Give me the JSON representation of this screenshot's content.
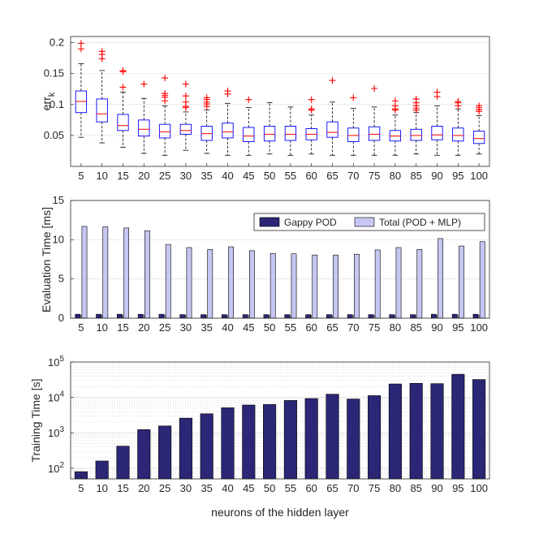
{
  "chart_data": [
    {
      "type": "box",
      "title": "",
      "xlabel": "",
      "ylabel": "err",
      "ylabel_subscript": "k",
      "categories": [
        "5",
        "10",
        "15",
        "20",
        "25",
        "30",
        "35",
        "40",
        "45",
        "50",
        "55",
        "60",
        "65",
        "70",
        "75",
        "80",
        "85",
        "90",
        "95",
        "100"
      ],
      "ylim": [
        0,
        0.21
      ],
      "yticks": [
        0.05,
        0.1,
        0.15,
        0.2
      ],
      "ytick_labels": [
        "0.05",
        "0.1",
        "0.15",
        "0.2"
      ],
      "grid": true,
      "box_color": "#0000ff",
      "median_color": "#ff0000",
      "outlier_color": "#ff0000",
      "whisker_color": "#000000",
      "boxes": [
        {
          "q1": 0.087,
          "median": 0.105,
          "q3": 0.122,
          "lo": 0.047,
          "hi": 0.166,
          "outliers": [
            0.19,
            0.199
          ]
        },
        {
          "q1": 0.072,
          "median": 0.085,
          "q3": 0.109,
          "lo": 0.038,
          "hi": 0.155,
          "outliers": [
            0.174,
            0.181,
            0.186
          ]
        },
        {
          "q1": 0.058,
          "median": 0.066,
          "q3": 0.084,
          "lo": 0.031,
          "hi": 0.12,
          "outliers": [
            0.128,
            0.153,
            0.155
          ]
        },
        {
          "q1": 0.049,
          "median": 0.06,
          "q3": 0.075,
          "lo": 0.021,
          "hi": 0.11,
          "outliers": [
            0.133
          ]
        },
        {
          "q1": 0.046,
          "median": 0.056,
          "q3": 0.068,
          "lo": 0.018,
          "hi": 0.098,
          "outliers": [
            0.106,
            0.112,
            0.115,
            0.118,
            0.143
          ]
        },
        {
          "q1": 0.052,
          "median": 0.058,
          "q3": 0.068,
          "lo": 0.026,
          "hi": 0.088,
          "outliers": [
            0.095,
            0.097,
            0.104,
            0.114,
            0.133
          ]
        },
        {
          "q1": 0.042,
          "median": 0.053,
          "q3": 0.065,
          "lo": 0.021,
          "hi": 0.091,
          "outliers": [
            0.097,
            0.101,
            0.104,
            0.108,
            0.111
          ]
        },
        {
          "q1": 0.046,
          "median": 0.056,
          "q3": 0.07,
          "lo": 0.018,
          "hi": 0.102,
          "outliers": [
            0.117,
            0.122
          ]
        },
        {
          "q1": 0.04,
          "median": 0.049,
          "q3": 0.063,
          "lo": 0.018,
          "hi": 0.095,
          "outliers": [
            0.108
          ]
        },
        {
          "q1": 0.041,
          "median": 0.052,
          "q3": 0.065,
          "lo": 0.02,
          "hi": 0.103,
          "outliers": []
        },
        {
          "q1": 0.042,
          "median": 0.052,
          "q3": 0.065,
          "lo": 0.018,
          "hi": 0.096,
          "outliers": []
        },
        {
          "q1": 0.043,
          "median": 0.052,
          "q3": 0.061,
          "lo": 0.02,
          "hi": 0.083,
          "outliers": [
            0.091,
            0.093,
            0.108
          ]
        },
        {
          "q1": 0.047,
          "median": 0.055,
          "q3": 0.072,
          "lo": 0.018,
          "hi": 0.104,
          "outliers": [
            0.139
          ]
        },
        {
          "q1": 0.04,
          "median": 0.05,
          "q3": 0.062,
          "lo": 0.018,
          "hi": 0.094,
          "outliers": [
            0.111
          ]
        },
        {
          "q1": 0.042,
          "median": 0.052,
          "q3": 0.064,
          "lo": 0.018,
          "hi": 0.096,
          "outliers": [
            0.126
          ]
        },
        {
          "q1": 0.041,
          "median": 0.049,
          "q3": 0.058,
          "lo": 0.018,
          "hi": 0.083,
          "outliers": [
            0.091,
            0.093,
            0.098,
            0.106
          ]
        },
        {
          "q1": 0.042,
          "median": 0.05,
          "q3": 0.06,
          "lo": 0.02,
          "hi": 0.087,
          "outliers": [
            0.091,
            0.094,
            0.098,
            0.103,
            0.109
          ]
        },
        {
          "q1": 0.043,
          "median": 0.051,
          "q3": 0.065,
          "lo": 0.018,
          "hi": 0.098,
          "outliers": [
            0.113,
            0.12
          ]
        },
        {
          "q1": 0.041,
          "median": 0.05,
          "q3": 0.062,
          "lo": 0.018,
          "hi": 0.093,
          "outliers": [
            0.098,
            0.103,
            0.105
          ]
        },
        {
          "q1": 0.037,
          "median": 0.045,
          "q3": 0.057,
          "lo": 0.02,
          "hi": 0.082,
          "outliers": [
            0.089,
            0.092,
            0.095,
            0.098
          ]
        }
      ]
    },
    {
      "type": "bar",
      "title": "",
      "xlabel": "",
      "ylabel": "Evaluation Time [ms]",
      "categories": [
        "5",
        "10",
        "15",
        "20",
        "25",
        "30",
        "35",
        "40",
        "45",
        "50",
        "55",
        "60",
        "65",
        "70",
        "75",
        "80",
        "85",
        "90",
        "95",
        "100"
      ],
      "ylim": [
        0,
        15
      ],
      "yticks": [
        0,
        5,
        10,
        15
      ],
      "ytick_labels": [
        "0",
        "5",
        "10",
        "15"
      ],
      "grid": true,
      "legend_position": "top-right",
      "series": [
        {
          "name": "Gappy POD",
          "color": "#2b2776",
          "values": [
            0.5,
            0.5,
            0.5,
            0.5,
            0.5,
            0.45,
            0.45,
            0.45,
            0.45,
            0.45,
            0.45,
            0.45,
            0.45,
            0.45,
            0.45,
            0.45,
            0.45,
            0.5,
            0.5,
            0.5
          ]
        },
        {
          "name": "Total (POD + MLP)",
          "color": "#c5c6f2",
          "values": [
            11.7,
            11.65,
            11.5,
            11.15,
            9.4,
            9.0,
            8.75,
            9.1,
            8.6,
            8.25,
            8.2,
            8.05,
            8.05,
            8.15,
            8.7,
            9.0,
            8.75,
            10.15,
            9.2,
            9.75
          ]
        }
      ]
    },
    {
      "type": "bar",
      "title": "",
      "xlabel": "neurons of the hidden layer",
      "ylabel": "Training Time [s]",
      "yscale": "log",
      "categories": [
        "5",
        "10",
        "15",
        "20",
        "25",
        "30",
        "35",
        "40",
        "45",
        "50",
        "55",
        "60",
        "65",
        "70",
        "75",
        "80",
        "85",
        "90",
        "95",
        "100"
      ],
      "ylim": [
        50,
        100000
      ],
      "yticks": [
        100,
        1000,
        10000,
        100000
      ],
      "ytick_labels": [
        {
          "base": "10",
          "exp": "2"
        },
        {
          "base": "10",
          "exp": "3"
        },
        {
          "base": "10",
          "exp": "4"
        },
        {
          "base": "10",
          "exp": "5"
        }
      ],
      "grid": true,
      "series": [
        {
          "name": "Training Time",
          "color": "#2b2776",
          "values": [
            80,
            160,
            420,
            1230,
            1560,
            2600,
            3450,
            5100,
            6100,
            6300,
            8200,
            9300,
            12300,
            9000,
            11200,
            24000,
            25000,
            24500,
            45000,
            32000
          ]
        }
      ]
    }
  ]
}
